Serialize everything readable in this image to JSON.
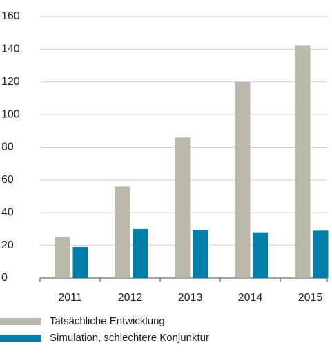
{
  "chart_data": {
    "type": "bar",
    "categories": [
      "2011",
      "2012",
      "2013",
      "2014",
      "2015"
    ],
    "series": [
      {
        "name": "Tatsächliche Entwicklung",
        "color": "#bcb9ab",
        "values": [
          25,
          56,
          86,
          120,
          142.5
        ]
      },
      {
        "name": "Simulation, schlechtere Konjunktur",
        "color": "#0080a8",
        "values": [
          19,
          30,
          29.5,
          28,
          29
        ]
      }
    ],
    "ylim": [
      0,
      160
    ],
    "yticks": [
      0,
      20,
      40,
      60,
      80,
      100,
      120,
      140,
      160
    ],
    "grid": true
  }
}
